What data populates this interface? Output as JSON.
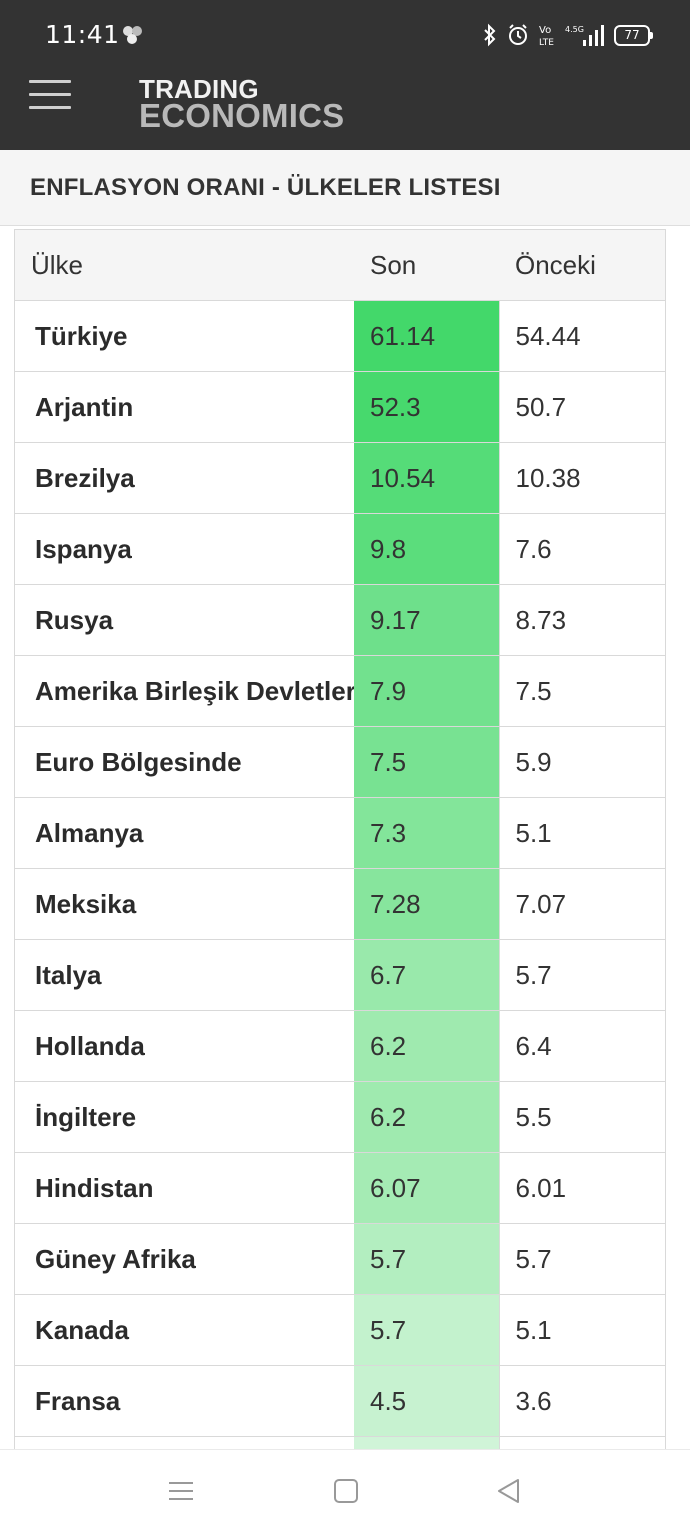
{
  "status_bar": {
    "time": "11:41",
    "battery": "77",
    "icons": [
      "bluetooth-icon",
      "alarm-icon",
      "volte-icon",
      "signal-icon",
      "battery-icon"
    ]
  },
  "header": {
    "logo_top": "TRADING",
    "logo_bottom": "ECONOMICS"
  },
  "page_title": "ENFLASYON ORANI - ÜLKELER LISTESI",
  "table": {
    "columns": [
      "Ülke",
      "Son",
      "Önceki"
    ],
    "rows": [
      {
        "country": "Türkiye",
        "son": "61.14",
        "onceki": "54.44",
        "color": "#43d86a"
      },
      {
        "country": "Arjantin",
        "son": "52.3",
        "onceki": "50.7",
        "color": "#47d96d"
      },
      {
        "country": "Brezilya",
        "son": "10.54",
        "onceki": "10.38",
        "color": "#55dc78"
      },
      {
        "country": "Ispanya",
        "son": "9.8",
        "onceki": "7.6",
        "color": "#5bdd7c"
      },
      {
        "country": "Rusya",
        "son": "9.17",
        "onceki": "8.73",
        "color": "#6ee08b"
      },
      {
        "country": "Amerika Birleşik Devletleri",
        "son": "7.9",
        "onceki": "7.5",
        "color": "#72e18e"
      },
      {
        "country": "Euro Bölgesinde",
        "son": "7.5",
        "onceki": "5.9",
        "color": "#78e292"
      },
      {
        "country": "Almanya",
        "son": "7.3",
        "onceki": "5.1",
        "color": "#83e59a"
      },
      {
        "country": "Meksika",
        "son": "7.28",
        "onceki": "7.07",
        "color": "#87e59d"
      },
      {
        "country": "Italya",
        "son": "6.7",
        "onceki": "5.7",
        "color": "#99e9ab"
      },
      {
        "country": "Hollanda",
        "son": "6.2",
        "onceki": "6.4",
        "color": "#9feaaf"
      },
      {
        "country": "İngiltere",
        "son": "6.2",
        "onceki": "5.5",
        "color": "#9feaaf"
      },
      {
        "country": "Hindistan",
        "son": "6.07",
        "onceki": "6.01",
        "color": "#a5ebb4"
      },
      {
        "country": "Güney Afrika",
        "son": "5.7",
        "onceki": "5.7",
        "color": "#b3eec0"
      },
      {
        "country": "Kanada",
        "son": "5.7",
        "onceki": "5.1",
        "color": "#c3f2cd"
      },
      {
        "country": "Fransa",
        "son": "4.5",
        "onceki": "3.6",
        "color": "#c7f2d0"
      },
      {
        "country": "",
        "son": "",
        "onceki": "",
        "color": "#d0f4d8"
      }
    ]
  },
  "nav": {
    "icons": [
      "recent-apps-icon",
      "home-icon",
      "back-icon"
    ]
  }
}
